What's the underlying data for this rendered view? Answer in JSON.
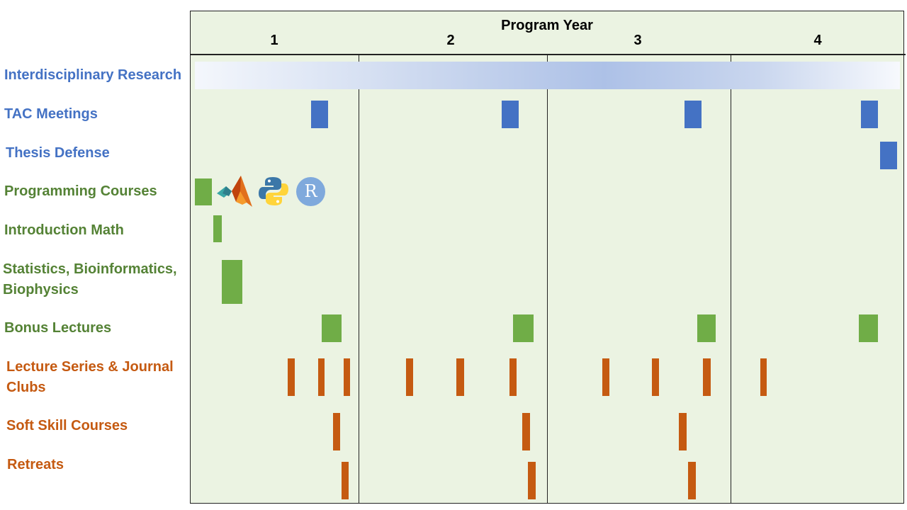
{
  "chart_data": {
    "type": "gantt",
    "x_axis_title": "Program Year",
    "years": [
      "1",
      "2",
      "3",
      "4"
    ],
    "colors": {
      "blue": "#4472c4",
      "green": "#70ad47",
      "orange": "#c55a11"
    },
    "rows": [
      {
        "key": "research",
        "label": "Interdisciplinary Research",
        "color": "#4472c4",
        "events": [
          {
            "start": 0.0,
            "end": 4.0,
            "style": "gradient"
          }
        ]
      },
      {
        "key": "tac",
        "label": "TAC Meetings",
        "color": "#4472c4",
        "events": [
          {
            "start": 0.72,
            "end": 0.82
          },
          {
            "start": 1.76,
            "end": 1.85
          },
          {
            "start": 2.75,
            "end": 2.84
          },
          {
            "start": 3.75,
            "end": 3.85
          }
        ]
      },
      {
        "key": "thesis",
        "label": "Thesis Defense",
        "color": "#4472c4",
        "events": [
          {
            "start": 3.86,
            "end": 3.96
          }
        ]
      },
      {
        "key": "programming",
        "label": "Programming Courses",
        "color": "#70ad47",
        "events": [
          {
            "start": 0.03,
            "end": 0.13
          }
        ],
        "icons": [
          "matlab-icon",
          "python-icon",
          "r-icon"
        ],
        "r_glyph": "R"
      },
      {
        "key": "intro_math",
        "label": "Introduction Math",
        "color": "#70ad47",
        "events": [
          {
            "start": 0.14,
            "end": 0.19
          }
        ]
      },
      {
        "key": "stats",
        "label": "Statistics, Bioinformatics, Biophysics",
        "label_lines": [
          "Statistics, Bioinformatics,",
          "Biophysics"
        ],
        "color": "#70ad47",
        "events": [
          {
            "start": 0.19,
            "end": 0.31
          }
        ]
      },
      {
        "key": "bonus",
        "label": "Bonus Lectures",
        "color": "#70ad47",
        "events": [
          {
            "start": 0.78,
            "end": 0.9
          },
          {
            "start": 1.82,
            "end": 1.93
          },
          {
            "start": 2.82,
            "end": 2.92
          },
          {
            "start": 3.74,
            "end": 3.85
          }
        ]
      },
      {
        "key": "lectures",
        "label": "Lecture Series & Journal Clubs",
        "label_lines": [
          "Lecture Series & Journal",
          "Clubs"
        ],
        "color": "#c55a11",
        "events": [
          {
            "start": 0.58,
            "end": 0.62
          },
          {
            "start": 0.76,
            "end": 0.8
          },
          {
            "start": 0.91,
            "end": 0.95
          },
          {
            "start": 1.25,
            "end": 1.29
          },
          {
            "start": 1.52,
            "end": 1.56
          },
          {
            "start": 1.8,
            "end": 1.84
          },
          {
            "start": 2.3,
            "end": 2.34
          },
          {
            "start": 2.57,
            "end": 2.61
          },
          {
            "start": 2.85,
            "end": 2.89
          },
          {
            "start": 3.17,
            "end": 3.21
          }
        ]
      },
      {
        "key": "soft",
        "label": "Soft Skill Courses",
        "color": "#c55a11",
        "events": [
          {
            "start": 0.85,
            "end": 0.89
          },
          {
            "start": 1.87,
            "end": 1.91
          },
          {
            "start": 2.72,
            "end": 2.76
          }
        ]
      },
      {
        "key": "retreats",
        "label": "Retreats",
        "color": "#c55a11",
        "events": [
          {
            "start": 0.9,
            "end": 0.94
          },
          {
            "start": 1.9,
            "end": 1.94
          },
          {
            "start": 2.77,
            "end": 2.81
          }
        ]
      }
    ]
  }
}
